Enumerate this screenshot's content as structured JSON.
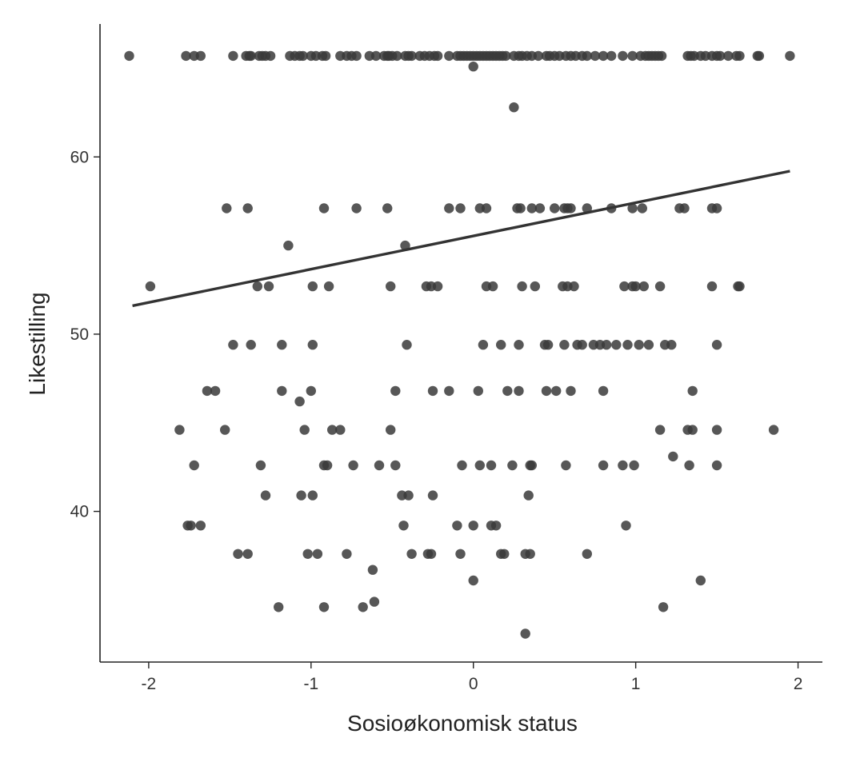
{
  "chart_data": {
    "type": "scatter",
    "xlabel": "Sosioøkonomisk status",
    "ylabel": "Likestilling",
    "xlim": [
      -2.3,
      2.15
    ],
    "ylim": [
      31.5,
      67.5
    ],
    "x_ticks": [
      -2,
      -1,
      0,
      1,
      2
    ],
    "y_ticks": [
      40,
      50,
      60
    ],
    "grid": false,
    "point_color": "#3a3a3a",
    "line_color": "#333333",
    "fit_line": {
      "x": [
        -2.1,
        1.95
      ],
      "y": [
        51.6,
        59.2
      ]
    },
    "points": [
      [
        -2.12,
        65.7
      ],
      [
        -1.77,
        65.7
      ],
      [
        -1.72,
        65.7
      ],
      [
        -1.68,
        65.7
      ],
      [
        -1.48,
        65.7
      ],
      [
        -1.4,
        65.7
      ],
      [
        -1.38,
        65.7
      ],
      [
        -1.37,
        65.7
      ],
      [
        -1.32,
        65.7
      ],
      [
        -1.3,
        65.7
      ],
      [
        -1.28,
        65.7
      ],
      [
        -1.25,
        65.7
      ],
      [
        -1.13,
        65.7
      ],
      [
        -1.1,
        65.7
      ],
      [
        -1.07,
        65.7
      ],
      [
        -1.05,
        65.7
      ],
      [
        -1.0,
        65.7
      ],
      [
        -0.97,
        65.7
      ],
      [
        -0.93,
        65.7
      ],
      [
        -0.91,
        65.7
      ],
      [
        -0.82,
        65.7
      ],
      [
        -0.78,
        65.7
      ],
      [
        -0.75,
        65.7
      ],
      [
        -0.72,
        65.7
      ],
      [
        -0.64,
        65.7
      ],
      [
        -0.6,
        65.7
      ],
      [
        -0.55,
        65.7
      ],
      [
        -0.53,
        65.7
      ],
      [
        -0.52,
        65.7
      ],
      [
        -0.5,
        65.7
      ],
      [
        -0.47,
        65.7
      ],
      [
        -0.42,
        65.7
      ],
      [
        -0.4,
        65.7
      ],
      [
        -0.38,
        65.7
      ],
      [
        -0.33,
        65.7
      ],
      [
        -0.3,
        65.7
      ],
      [
        -0.27,
        65.7
      ],
      [
        -0.24,
        65.7
      ],
      [
        -0.22,
        65.7
      ],
      [
        -0.15,
        65.7
      ],
      [
        -0.1,
        65.7
      ],
      [
        -0.08,
        65.7
      ],
      [
        -0.06,
        65.7
      ],
      [
        -0.04,
        65.7
      ],
      [
        -0.02,
        65.7
      ],
      [
        0.0,
        65.7
      ],
      [
        0.02,
        65.7
      ],
      [
        0.04,
        65.7
      ],
      [
        0.06,
        65.7
      ],
      [
        0.08,
        65.7
      ],
      [
        0.1,
        65.7
      ],
      [
        0.12,
        65.7
      ],
      [
        0.14,
        65.7
      ],
      [
        0.16,
        65.7
      ],
      [
        0.18,
        65.7
      ],
      [
        0.2,
        65.7
      ],
      [
        0.25,
        65.7
      ],
      [
        0.28,
        65.7
      ],
      [
        0.3,
        65.7
      ],
      [
        0.33,
        65.7
      ],
      [
        0.36,
        65.7
      ],
      [
        0.4,
        65.7
      ],
      [
        0.45,
        65.7
      ],
      [
        0.47,
        65.7
      ],
      [
        0.5,
        65.7
      ],
      [
        0.53,
        65.7
      ],
      [
        0.57,
        65.7
      ],
      [
        0.6,
        65.7
      ],
      [
        0.63,
        65.7
      ],
      [
        0.67,
        65.7
      ],
      [
        0.7,
        65.7
      ],
      [
        0.75,
        65.7
      ],
      [
        0.8,
        65.7
      ],
      [
        0.85,
        65.7
      ],
      [
        0.92,
        65.7
      ],
      [
        0.98,
        65.7
      ],
      [
        1.03,
        65.7
      ],
      [
        1.06,
        65.7
      ],
      [
        1.08,
        65.7
      ],
      [
        1.1,
        65.7
      ],
      [
        1.12,
        65.7
      ],
      [
        1.14,
        65.7
      ],
      [
        1.16,
        65.7
      ],
      [
        1.32,
        65.7
      ],
      [
        1.34,
        65.7
      ],
      [
        1.36,
        65.7
      ],
      [
        1.4,
        65.7
      ],
      [
        1.43,
        65.7
      ],
      [
        1.47,
        65.7
      ],
      [
        1.5,
        65.7
      ],
      [
        1.52,
        65.7
      ],
      [
        1.57,
        65.7
      ],
      [
        1.62,
        65.7
      ],
      [
        1.64,
        65.7
      ],
      [
        1.75,
        65.7
      ],
      [
        1.76,
        65.7
      ],
      [
        1.95,
        65.7
      ],
      [
        0.0,
        65.1
      ],
      [
        0.25,
        62.8
      ],
      [
        -1.52,
        57.1
      ],
      [
        -1.39,
        57.1
      ],
      [
        -0.92,
        57.1
      ],
      [
        -0.72,
        57.1
      ],
      [
        -0.53,
        57.1
      ],
      [
        -0.15,
        57.1
      ],
      [
        -0.08,
        57.1
      ],
      [
        0.04,
        57.1
      ],
      [
        0.08,
        57.1
      ],
      [
        0.27,
        57.1
      ],
      [
        0.29,
        57.1
      ],
      [
        0.36,
        57.1
      ],
      [
        0.41,
        57.1
      ],
      [
        0.5,
        57.1
      ],
      [
        0.56,
        57.1
      ],
      [
        0.58,
        57.1
      ],
      [
        0.6,
        57.1
      ],
      [
        0.7,
        57.1
      ],
      [
        0.85,
        57.1
      ],
      [
        0.98,
        57.1
      ],
      [
        1.04,
        57.1
      ],
      [
        1.27,
        57.1
      ],
      [
        1.3,
        57.1
      ],
      [
        1.47,
        57.1
      ],
      [
        1.5,
        57.1
      ],
      [
        -1.14,
        55.0
      ],
      [
        -0.42,
        55.0
      ],
      [
        -1.99,
        52.7
      ],
      [
        -1.33,
        52.7
      ],
      [
        -1.26,
        52.7
      ],
      [
        -0.99,
        52.7
      ],
      [
        -0.89,
        52.7
      ],
      [
        -0.51,
        52.7
      ],
      [
        -0.29,
        52.7
      ],
      [
        -0.26,
        52.7
      ],
      [
        -0.22,
        52.7
      ],
      [
        0.08,
        52.7
      ],
      [
        0.12,
        52.7
      ],
      [
        0.3,
        52.7
      ],
      [
        0.38,
        52.7
      ],
      [
        0.55,
        52.7
      ],
      [
        0.58,
        52.7
      ],
      [
        0.62,
        52.7
      ],
      [
        0.93,
        52.7
      ],
      [
        0.98,
        52.7
      ],
      [
        1.0,
        52.7
      ],
      [
        1.05,
        52.7
      ],
      [
        1.15,
        52.7
      ],
      [
        1.47,
        52.7
      ],
      [
        1.63,
        52.7
      ],
      [
        1.64,
        52.7
      ],
      [
        -1.48,
        49.4
      ],
      [
        -1.37,
        49.4
      ],
      [
        -1.18,
        49.4
      ],
      [
        -0.99,
        49.4
      ],
      [
        -0.41,
        49.4
      ],
      [
        0.06,
        49.4
      ],
      [
        0.17,
        49.4
      ],
      [
        0.28,
        49.4
      ],
      [
        0.44,
        49.4
      ],
      [
        0.46,
        49.4
      ],
      [
        0.56,
        49.4
      ],
      [
        0.64,
        49.4
      ],
      [
        0.67,
        49.4
      ],
      [
        0.74,
        49.4
      ],
      [
        0.78,
        49.4
      ],
      [
        0.82,
        49.4
      ],
      [
        0.88,
        49.4
      ],
      [
        0.95,
        49.4
      ],
      [
        1.02,
        49.4
      ],
      [
        1.08,
        49.4
      ],
      [
        1.18,
        49.4
      ],
      [
        1.22,
        49.4
      ],
      [
        1.5,
        49.4
      ],
      [
        -1.64,
        46.8
      ],
      [
        -1.59,
        46.8
      ],
      [
        -1.18,
        46.8
      ],
      [
        -1.0,
        46.8
      ],
      [
        -0.48,
        46.8
      ],
      [
        -0.25,
        46.8
      ],
      [
        -0.15,
        46.8
      ],
      [
        0.03,
        46.8
      ],
      [
        0.21,
        46.8
      ],
      [
        0.28,
        46.8
      ],
      [
        0.45,
        46.8
      ],
      [
        0.51,
        46.8
      ],
      [
        0.6,
        46.8
      ],
      [
        0.8,
        46.8
      ],
      [
        1.35,
        46.8
      ],
      [
        -1.07,
        46.2
      ],
      [
        -1.81,
        44.6
      ],
      [
        -1.53,
        44.6
      ],
      [
        -1.04,
        44.6
      ],
      [
        -0.87,
        44.6
      ],
      [
        -0.82,
        44.6
      ],
      [
        -0.51,
        44.6
      ],
      [
        1.15,
        44.6
      ],
      [
        1.32,
        44.6
      ],
      [
        1.35,
        44.6
      ],
      [
        1.5,
        44.6
      ],
      [
        1.85,
        44.6
      ],
      [
        1.23,
        43.1
      ],
      [
        -1.72,
        42.6
      ],
      [
        -1.31,
        42.6
      ],
      [
        -0.92,
        42.6
      ],
      [
        -0.9,
        42.6
      ],
      [
        -0.74,
        42.6
      ],
      [
        -0.58,
        42.6
      ],
      [
        -0.48,
        42.6
      ],
      [
        -0.07,
        42.6
      ],
      [
        0.04,
        42.6
      ],
      [
        0.11,
        42.6
      ],
      [
        0.24,
        42.6
      ],
      [
        0.35,
        42.6
      ],
      [
        0.36,
        42.6
      ],
      [
        0.57,
        42.6
      ],
      [
        0.8,
        42.6
      ],
      [
        0.92,
        42.6
      ],
      [
        0.99,
        42.6
      ],
      [
        1.33,
        42.6
      ],
      [
        1.5,
        42.6
      ],
      [
        -1.28,
        40.9
      ],
      [
        -1.06,
        40.9
      ],
      [
        -0.99,
        40.9
      ],
      [
        -0.44,
        40.9
      ],
      [
        -0.4,
        40.9
      ],
      [
        -0.25,
        40.9
      ],
      [
        0.34,
        40.9
      ],
      [
        -1.76,
        39.2
      ],
      [
        -1.74,
        39.2
      ],
      [
        -1.68,
        39.2
      ],
      [
        -0.43,
        39.2
      ],
      [
        -0.1,
        39.2
      ],
      [
        0.0,
        39.2
      ],
      [
        0.11,
        39.2
      ],
      [
        0.14,
        39.2
      ],
      [
        0.94,
        39.2
      ],
      [
        -1.45,
        37.6
      ],
      [
        -1.39,
        37.6
      ],
      [
        -1.02,
        37.6
      ],
      [
        -0.96,
        37.6
      ],
      [
        -0.78,
        37.6
      ],
      [
        -0.38,
        37.6
      ],
      [
        -0.28,
        37.6
      ],
      [
        -0.26,
        37.6
      ],
      [
        -0.08,
        37.6
      ],
      [
        0.17,
        37.6
      ],
      [
        0.19,
        37.6
      ],
      [
        0.32,
        37.6
      ],
      [
        0.35,
        37.6
      ],
      [
        0.7,
        37.6
      ],
      [
        -0.62,
        36.7
      ],
      [
        0.0,
        36.1
      ],
      [
        1.4,
        36.1
      ],
      [
        -1.2,
        34.6
      ],
      [
        -0.92,
        34.6
      ],
      [
        -0.68,
        34.6
      ],
      [
        -0.61,
        34.9
      ],
      [
        1.17,
        34.6
      ],
      [
        0.32,
        33.1
      ]
    ]
  }
}
